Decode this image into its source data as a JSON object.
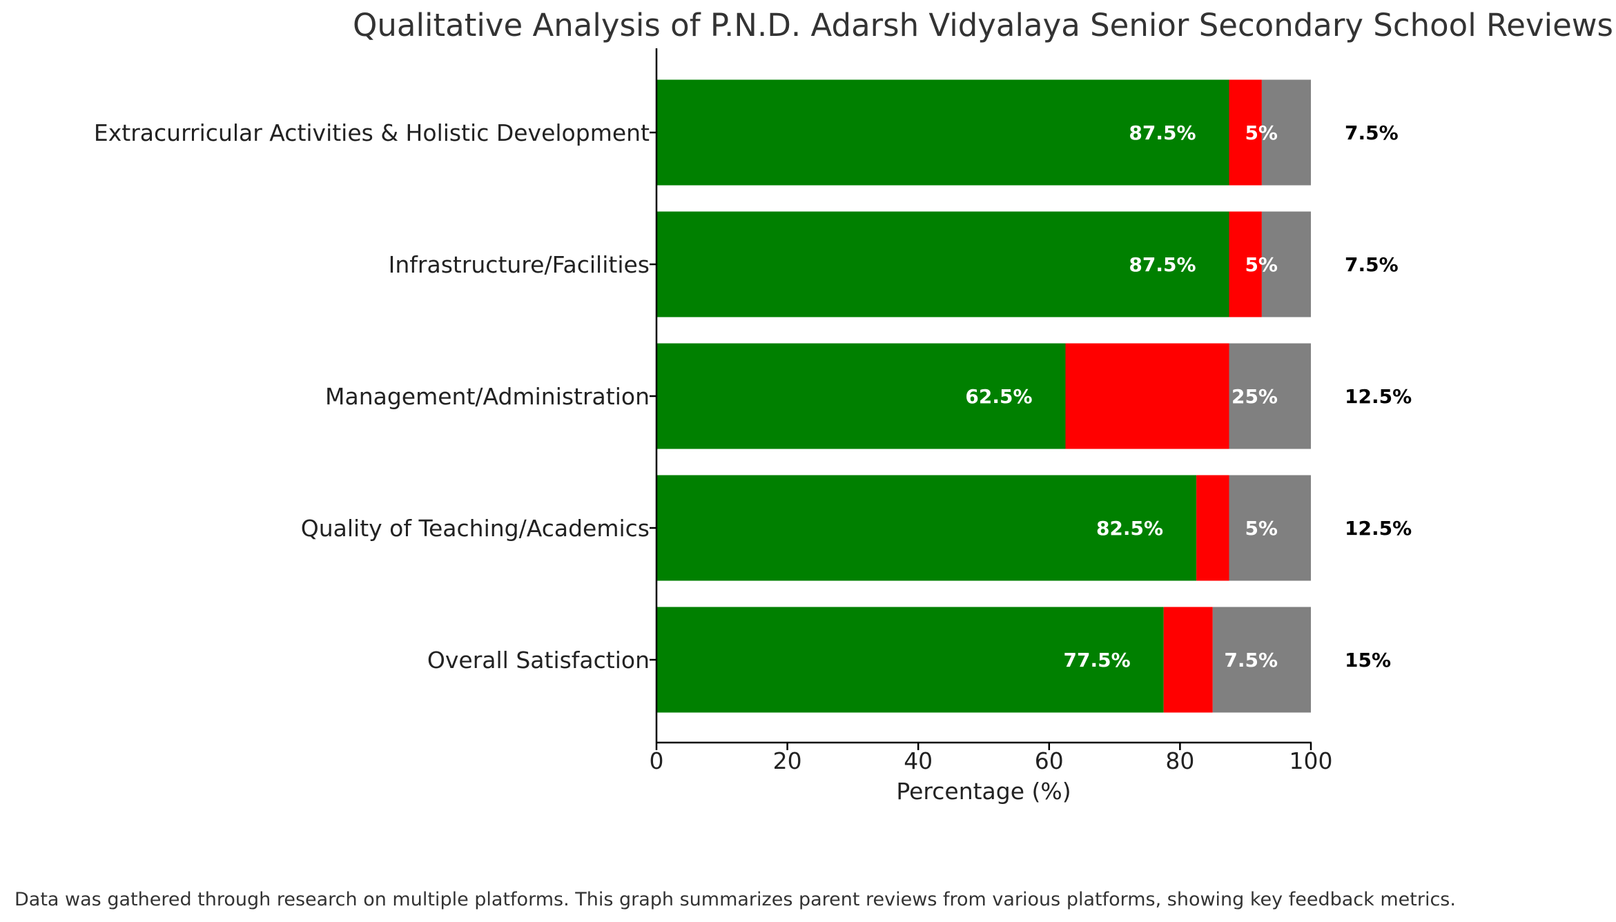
{
  "chart_data": {
    "type": "bar",
    "orientation": "horizontal",
    "stacked": true,
    "title": "Qualitative Analysis of P.N.D. Adarsh Vidyalaya Senior Secondary School Reviews",
    "xlabel": "Percentage (%)",
    "ylabel": "",
    "xlim": [
      0,
      100
    ],
    "xticks": [
      "0",
      "20",
      "40",
      "60",
      "80",
      "100"
    ],
    "grid": false,
    "categories": [
      "Overall Satisfaction",
      "Quality of Teaching/Academics",
      "Management/Administration",
      "Infrastructure/Facilities",
      "Extracurricular Activities & Holistic Development"
    ],
    "series": [
      {
        "color": "#008000",
        "values": [
          77.5,
          82.5,
          62.5,
          87.5,
          87.5
        ],
        "labels": [
          "77.5%",
          "82.5%",
          "62.5%",
          "87.5%",
          "87.5%"
        ]
      },
      {
        "color": "#ff0000",
        "values": [
          7.5,
          5,
          25,
          5,
          5
        ],
        "labels": [
          "7.5%",
          "5%",
          "25%",
          "5%",
          "5%"
        ]
      },
      {
        "color": "#808080",
        "values": [
          15,
          12.5,
          12.5,
          7.5,
          7.5
        ],
        "labels": [
          "15%",
          "12.5%",
          "12.5%",
          "7.5%",
          "7.5%"
        ]
      }
    ]
  },
  "footnote": "Data was gathered through research on multiple platforms. This graph summarizes parent reviews from various platforms, showing key feedback metrics."
}
